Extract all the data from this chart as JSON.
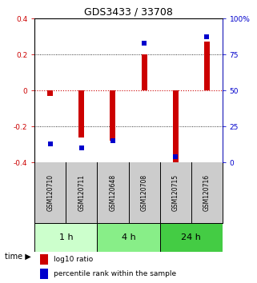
{
  "title": "GDS3433 / 33708",
  "samples": [
    "GSM120710",
    "GSM120711",
    "GSM120648",
    "GSM120708",
    "GSM120715",
    "GSM120716"
  ],
  "log10_ratio": [
    -0.03,
    -0.26,
    -0.28,
    0.2,
    -0.4,
    0.27
  ],
  "percentile_rank": [
    0.13,
    0.1,
    0.15,
    0.83,
    0.04,
    0.87
  ],
  "ylim_left": [
    -0.4,
    0.4
  ],
  "ylim_right": [
    0,
    1.0
  ],
  "yticks_left": [
    -0.4,
    -0.2,
    0.0,
    0.2,
    0.4
  ],
  "yticks_right": [
    0,
    0.25,
    0.5,
    0.75,
    1.0
  ],
  "yticklabels_left": [
    "-0.4",
    "-0.2",
    "0",
    "0.2",
    "0.4"
  ],
  "yticklabels_right": [
    "0",
    "25",
    "50",
    "75",
    "100%"
  ],
  "bar_color": "#cc0000",
  "dot_color": "#0000cc",
  "hline0_color": "#cc0000",
  "grid_color": "#000000",
  "time_groups": [
    {
      "label": "1 h",
      "samples": [
        0,
        1
      ],
      "color": "#ccffcc"
    },
    {
      "label": "4 h",
      "samples": [
        2,
        3
      ],
      "color": "#88ee88"
    },
    {
      "label": "24 h",
      "samples": [
        4,
        5
      ],
      "color": "#44cc44"
    }
  ],
  "bar_width": 0.18,
  "dot_size": 22,
  "background_color": "#ffffff",
  "plot_bg_color": "#ffffff",
  "gsm_bg_color": "#cccccc",
  "legend_log10": "log10 ratio",
  "legend_pct": "percentile rank within the sample"
}
